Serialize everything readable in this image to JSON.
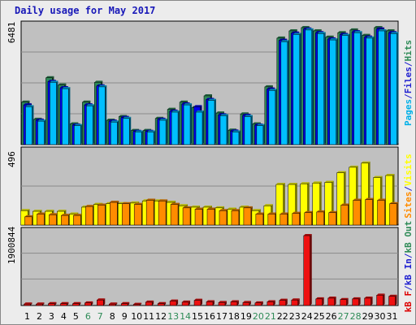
{
  "title": "Daily usage for May 2017",
  "chart_data": [
    {
      "type": "bar",
      "panel": "hits-files-pages",
      "max_label": "6481",
      "ylim": [
        0,
        6481
      ],
      "legend": [
        {
          "text": "Pages",
          "color": "#00b0e8"
        },
        {
          "text": "/",
          "color": "#1f1fd0"
        },
        {
          "text": "Files",
          "color": "#1f1fd0"
        },
        {
          "text": "/",
          "color": "#1f1fd0"
        },
        {
          "text": "Hits",
          "color": "#2e8b57"
        }
      ],
      "series": [
        {
          "name": "Hits",
          "color": "#2e8b57",
          "values": [
            2350,
            1400,
            3700,
            3300,
            1150,
            2350,
            3450,
            1350,
            1550,
            780,
            780,
            1450,
            1950,
            2350,
            2050,
            2700,
            1750,
            800,
            1700,
            1150,
            3200,
            5900,
            6300,
            6481,
            6300,
            5950,
            6200,
            6350,
            6050,
            6481,
            6300
          ]
        },
        {
          "name": "Files",
          "color": "#0000ee",
          "values": [
            2200,
            1350,
            3500,
            3150,
            1080,
            2200,
            3250,
            1300,
            1500,
            730,
            730,
            1400,
            1850,
            2250,
            2100,
            2500,
            1650,
            750,
            1620,
            1080,
            3080,
            5780,
            6180,
            6400,
            6200,
            5850,
            6100,
            6250,
            5950,
            6400,
            6200
          ]
        },
        {
          "name": "Pages",
          "color": "#00bfff",
          "values": [
            2100,
            1300,
            3450,
            3100,
            1050,
            2150,
            3200,
            1250,
            1450,
            700,
            700,
            1350,
            1800,
            2200,
            1800,
            2450,
            1600,
            700,
            1550,
            1050,
            3000,
            5700,
            6100,
            6350,
            6150,
            5800,
            6050,
            6200,
            5900,
            6300,
            6150
          ]
        }
      ]
    },
    {
      "type": "bar",
      "panel": "sites-visits",
      "max_label": "496",
      "ylim": [
        0,
        496
      ],
      "legend": [
        {
          "text": "Sites",
          "color": "#ff8c00"
        },
        {
          "text": "/",
          "color": "#1f1fd0"
        },
        {
          "text": "Visits",
          "color": "#ffff00"
        }
      ],
      "series": [
        {
          "name": "Visits",
          "color": "#ffff00",
          "values": [
            105,
            100,
            100,
            100,
            80,
            130,
            150,
            155,
            155,
            160,
            175,
            175,
            165,
            140,
            130,
            130,
            125,
            115,
            130,
            105,
            140,
            295,
            295,
            300,
            305,
            310,
            380,
            420,
            450,
            345,
            360
          ]
        },
        {
          "name": "Sites",
          "color": "#ff8c00",
          "values": [
            60,
            80,
            75,
            70,
            70,
            135,
            145,
            165,
            155,
            150,
            180,
            175,
            150,
            125,
            115,
            115,
            105,
            105,
            125,
            80,
            80,
            80,
            85,
            90,
            95,
            90,
            145,
            180,
            185,
            180,
            155
          ]
        }
      ]
    },
    {
      "type": "bar",
      "panel": "kbytes",
      "max_label": "1900844",
      "ylim": [
        0,
        1900844
      ],
      "legend": [
        {
          "text": "kB F",
          "color": "#dd0000"
        },
        {
          "text": "/",
          "color": "#1f1fd0"
        },
        {
          "text": "kB In",
          "color": "#1f1fd0"
        },
        {
          "text": "/",
          "color": "#1f1fd0"
        },
        {
          "text": "kB Out",
          "color": "#2e8b57"
        }
      ],
      "series": [
        {
          "name": "kB F",
          "color": "#ee1111",
          "values": [
            40000,
            40000,
            50000,
            50000,
            50000,
            70000,
            150000,
            40000,
            50000,
            30000,
            90000,
            50000,
            120000,
            90000,
            140000,
            100000,
            80000,
            100000,
            80000,
            70000,
            100000,
            140000,
            150000,
            1900844,
            180000,
            200000,
            160000,
            180000,
            200000,
            280000,
            250000
          ]
        }
      ]
    }
  ],
  "x_axis": {
    "labels": [
      "1",
      "2",
      "3",
      "4",
      "5",
      "6",
      "7",
      "8",
      "9",
      "10",
      "11",
      "12",
      "13",
      "14",
      "15",
      "16",
      "17",
      "18",
      "19",
      "20",
      "21",
      "22",
      "23",
      "24",
      "25",
      "26",
      "27",
      "28",
      "29",
      "30",
      "31"
    ],
    "weekend_days": [
      6,
      7,
      13,
      14,
      20,
      21,
      27,
      28
    ],
    "weekday_color": "#000000",
    "weekend_color": "#2e8b57"
  },
  "colors": {
    "panel_bg": "#c0c0c0",
    "grid": "#8a8a8a",
    "frame": "#ececec",
    "title": "#1818b8"
  }
}
